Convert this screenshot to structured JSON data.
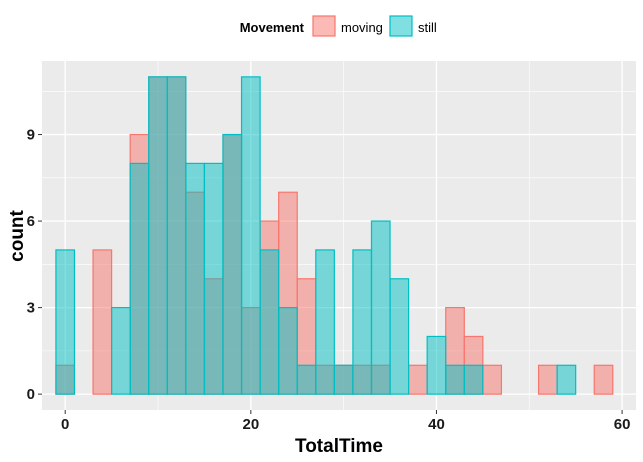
{
  "chart_data": {
    "type": "bar",
    "subtype": "overlaid-histogram",
    "title": "",
    "xlabel": "TotalTime",
    "ylabel": "count",
    "xlim": [
      -2.5,
      61.5
    ],
    "ylim": [
      -0.55,
      11.55
    ],
    "xticks": [
      0,
      20,
      40,
      60
    ],
    "yticks": [
      0,
      3,
      6,
      9
    ],
    "binwidth": 2,
    "bin_start": -1,
    "grid": true,
    "legend": {
      "title": "Movement",
      "position": "top"
    },
    "series": [
      {
        "name": "moving",
        "fill": "#F8766D",
        "stroke": "#F8766D",
        "values": [
          1,
          0,
          5,
          0,
          9,
          11,
          11,
          7,
          4,
          9,
          3,
          6,
          7,
          4,
          1,
          1,
          1,
          1,
          0,
          1,
          0,
          3,
          2,
          1,
          0,
          0,
          1,
          0,
          0,
          1
        ]
      },
      {
        "name": "still",
        "fill": "#00BFC4",
        "stroke": "#00BFC4",
        "values": [
          5,
          0,
          0,
          3,
          8,
          11,
          11,
          8,
          8,
          9,
          11,
          5,
          3,
          1,
          5,
          1,
          5,
          6,
          4,
          0,
          2,
          1,
          1,
          0,
          0,
          0,
          0,
          1,
          0,
          0
        ]
      }
    ]
  },
  "colors": {
    "panel_background": "#EBEBEB",
    "grid_major": "#FFFFFF",
    "fill_opacity": 0.5
  }
}
